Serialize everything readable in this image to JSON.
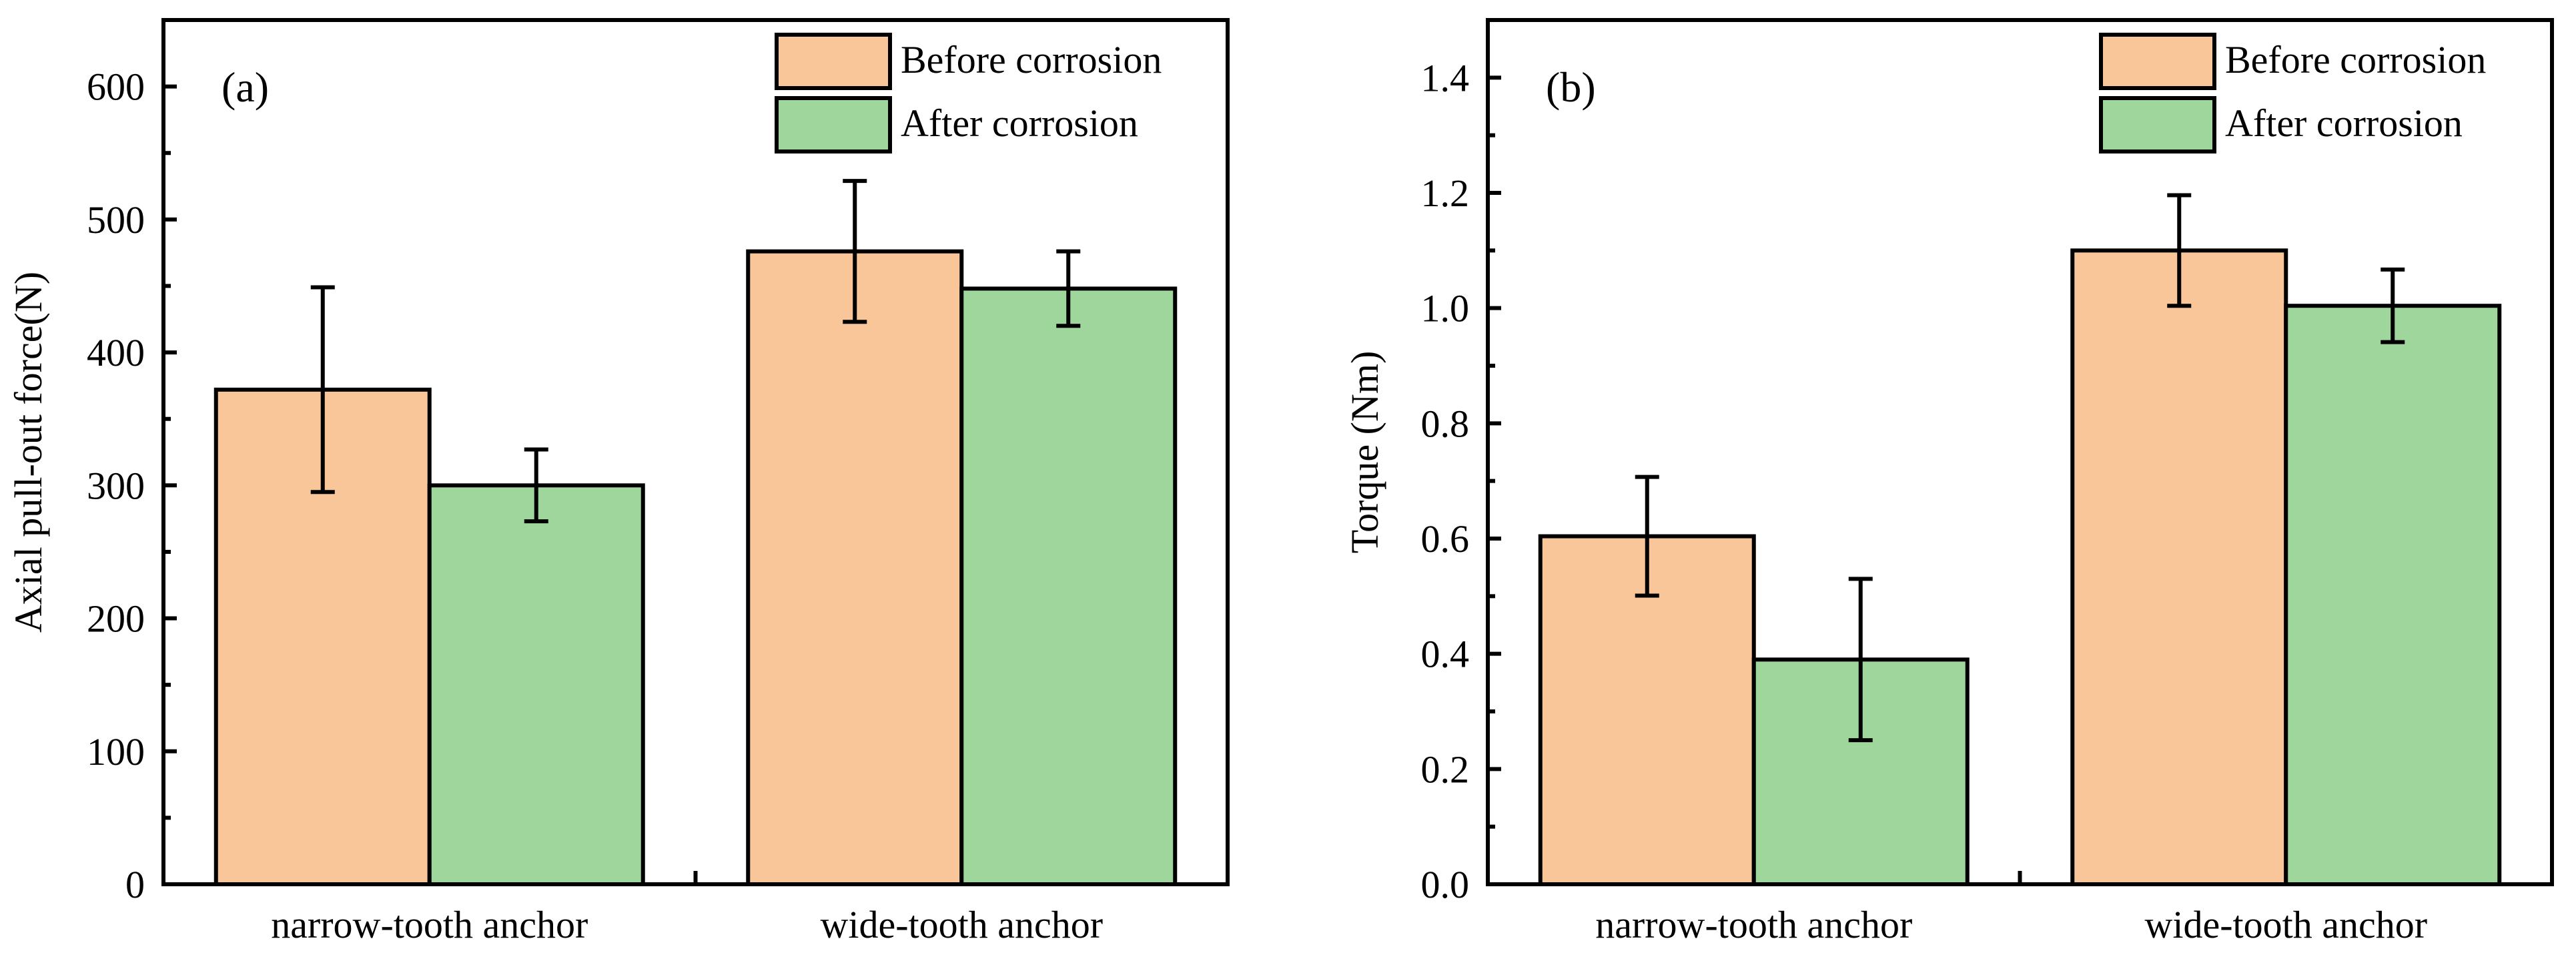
{
  "chart_data": [
    {
      "type": "bar",
      "panel_label": "(a)",
      "ylabel": "Axial pull-out force(N)",
      "xlabel": "",
      "categories": [
        "narrow-tooth anchor",
        "wide-tooth anchor"
      ],
      "ylim": [
        0,
        650
      ],
      "yticks": [
        0,
        100,
        200,
        300,
        400,
        500,
        600
      ],
      "ytick_labels": [
        "0",
        "100",
        "200",
        "300",
        "400",
        "500",
        "600"
      ],
      "series": [
        {
          "name": "Before corrosion",
          "color": "#F9C699",
          "values": [
            372,
            476
          ],
          "error": [
            77,
            53
          ]
        },
        {
          "name": "After corrosion",
          "color": "#9ED69C",
          "values": [
            300,
            448
          ],
          "error": [
            27,
            28
          ]
        }
      ],
      "legend_position": "top-right",
      "grid": false
    },
    {
      "type": "bar",
      "panel_label": "(b)",
      "ylabel": "Torque (Nm)",
      "xlabel": "",
      "categories": [
        "narrow-tooth anchor",
        "wide-tooth anchor"
      ],
      "ylim": [
        0,
        1.5
      ],
      "yticks": [
        0,
        0.2,
        0.4,
        0.6,
        0.8,
        1.0,
        1.2,
        1.4
      ],
      "ytick_labels": [
        "0.0",
        "0.2",
        "0.4",
        "0.6",
        "0.8",
        "1.0",
        "1.2",
        "1.4"
      ],
      "series": [
        {
          "name": "Before corrosion",
          "color": "#F9C699",
          "values": [
            0.604,
            1.1
          ],
          "error": [
            0.103,
            0.096
          ]
        },
        {
          "name": "After corrosion",
          "color": "#9ED69C",
          "values": [
            0.39,
            1.004
          ],
          "error": [
            0.14,
            0.063
          ]
        }
      ],
      "legend_position": "top-right",
      "grid": false
    }
  ]
}
